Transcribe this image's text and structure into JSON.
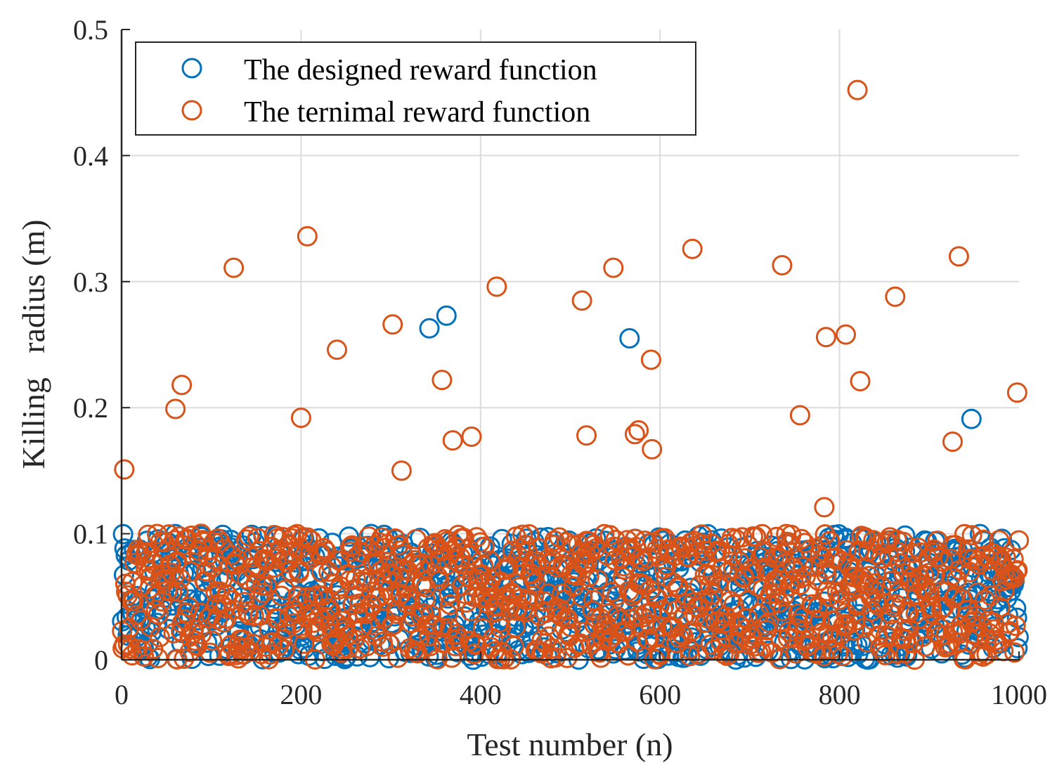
{
  "chart_data": {
    "type": "scatter",
    "title": "",
    "xlabel": "Test number (n)",
    "ylabel": "Killing   radius (m)",
    "xlim": [
      0,
      1000
    ],
    "ylim": [
      0,
      0.5
    ],
    "xticks": [
      "0",
      "200",
      "400",
      "600",
      "800",
      "1000"
    ],
    "yticks": [
      "0",
      "0.1",
      "0.2",
      "0.3",
      "0.4",
      "0.5"
    ],
    "grid": true,
    "legend_position": "top-left",
    "marker": "open-circle",
    "series": [
      {
        "name": "The designed reward function",
        "color": "#0072BD",
        "cluster": {
          "n": 1000,
          "x_range": [
            0,
            1000
          ],
          "y_range": [
            0,
            0.1
          ]
        },
        "outliers": [
          [
            343,
            0.263
          ],
          [
            362,
            0.273
          ],
          [
            566,
            0.255
          ],
          [
            947,
            0.191
          ]
        ]
      },
      {
        "name": "The ternimal reward function",
        "color": "#D95319",
        "cluster": {
          "n": 1000,
          "x_range": [
            0,
            1000
          ],
          "y_range": [
            0,
            0.1
          ]
        },
        "outliers": [
          [
            3,
            0.151
          ],
          [
            60,
            0.199
          ],
          [
            67,
            0.218
          ],
          [
            125,
            0.311
          ],
          [
            200,
            0.192
          ],
          [
            207,
            0.336
          ],
          [
            240,
            0.246
          ],
          [
            302,
            0.266
          ],
          [
            312,
            0.15
          ],
          [
            357,
            0.222
          ],
          [
            369,
            0.174
          ],
          [
            390,
            0.177
          ],
          [
            418,
            0.296
          ],
          [
            513,
            0.285
          ],
          [
            518,
            0.178
          ],
          [
            548,
            0.311
          ],
          [
            572,
            0.179
          ],
          [
            576,
            0.182
          ],
          [
            590,
            0.238
          ],
          [
            591,
            0.167
          ],
          [
            636,
            0.326
          ],
          [
            736,
            0.313
          ],
          [
            756,
            0.194
          ],
          [
            783,
            0.121
          ],
          [
            785,
            0.256
          ],
          [
            807,
            0.258
          ],
          [
            820,
            0.452
          ],
          [
            823,
            0.221
          ],
          [
            862,
            0.288
          ],
          [
            926,
            0.173
          ],
          [
            933,
            0.32
          ],
          [
            998,
            0.212
          ]
        ]
      }
    ]
  }
}
